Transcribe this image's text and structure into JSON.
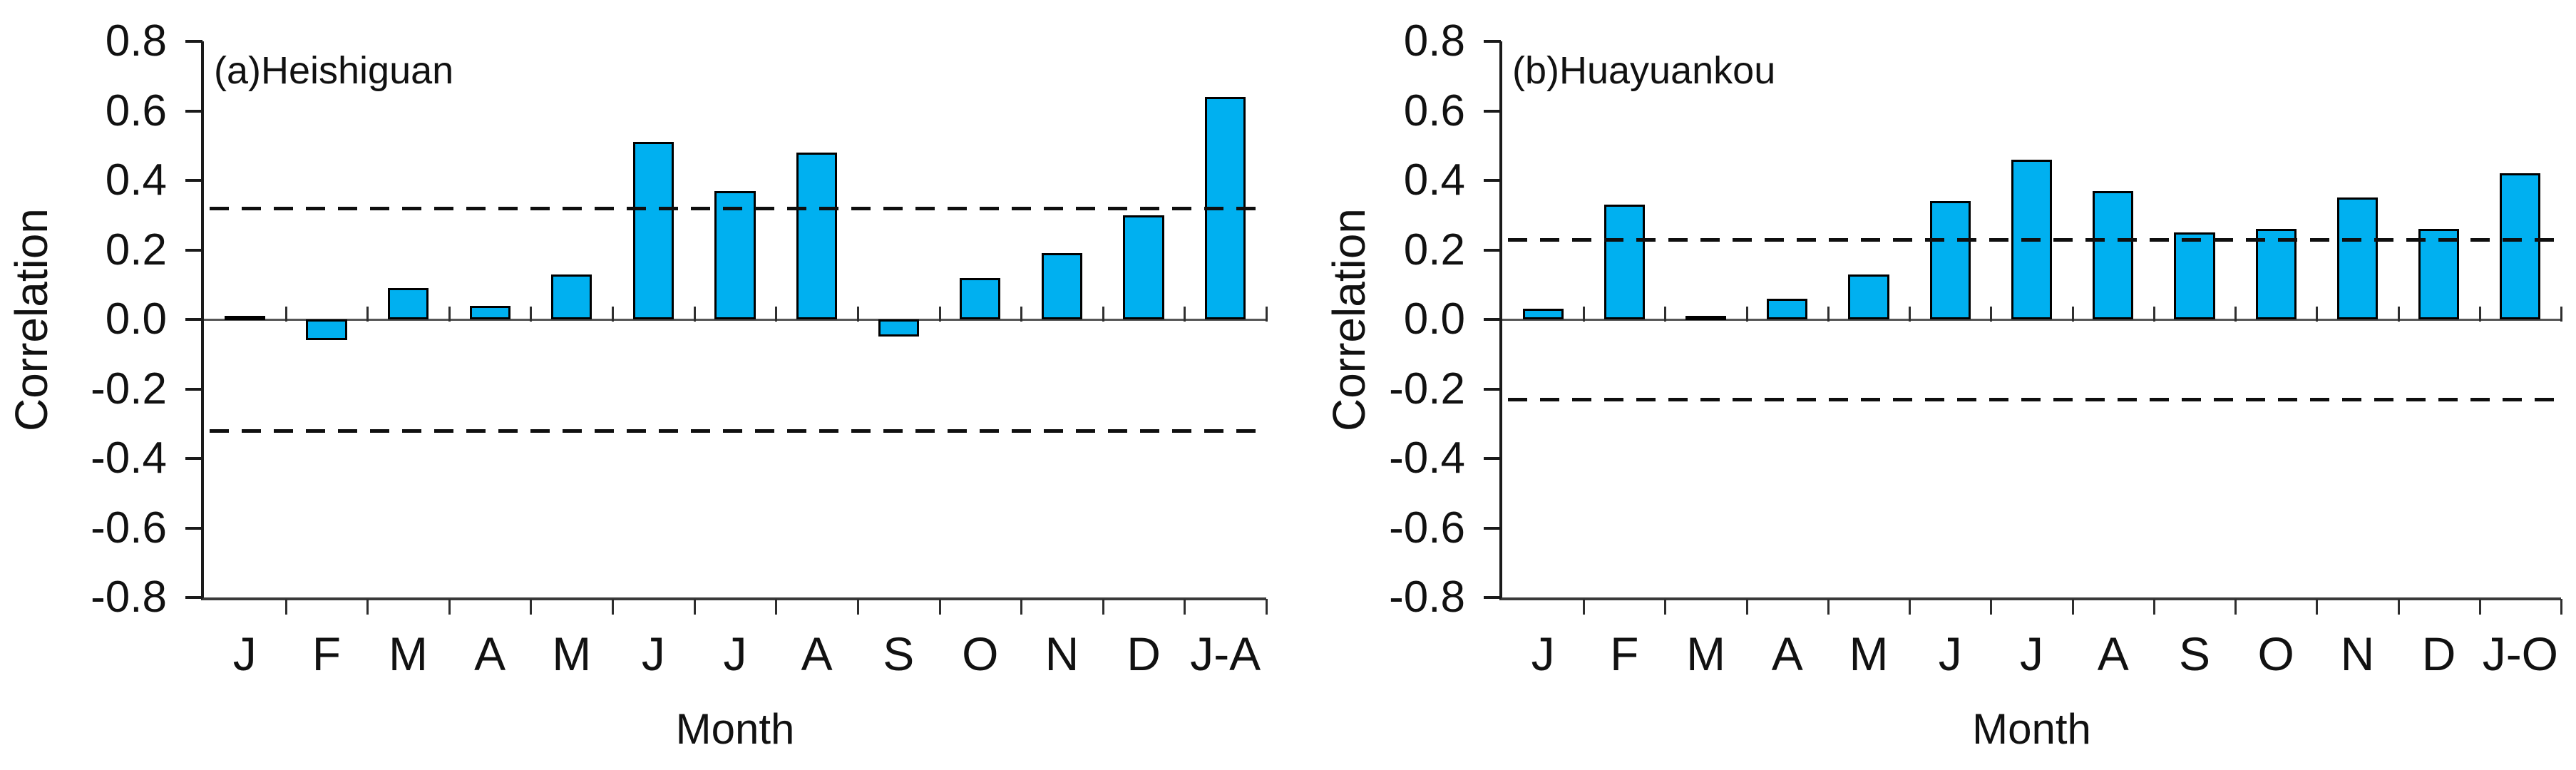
{
  "figure": {
    "background": "#ffffff",
    "bar_color": "#00b0f0",
    "bar_border_color": "#000000",
    "dashed_line_color": "#0f0f0f"
  },
  "chart_data": [
    {
      "type": "bar",
      "panel_label": "(a)Heishiguan",
      "ylabel": "Correlation",
      "xlabel": "Month",
      "ylim": [
        -0.8,
        0.8
      ],
      "ytick_step": 0.2,
      "ytick_labels": [
        "0.8",
        "0.6",
        "0.4",
        "0.2",
        "0.0",
        "-0.2",
        "-0.4",
        "-0.6",
        "-0.8"
      ],
      "categories": [
        "J",
        "F",
        "M",
        "A",
        "M",
        "J",
        "J",
        "A",
        "S",
        "O",
        "N",
        "D",
        "J-A"
      ],
      "values": [
        0.01,
        -0.06,
        0.09,
        0.04,
        0.13,
        0.51,
        0.37,
        0.48,
        -0.05,
        0.12,
        0.19,
        0.3,
        0.64
      ],
      "significance_lines": [
        0.32,
        -0.32
      ],
      "grid": false,
      "legend": null
    },
    {
      "type": "bar",
      "panel_label": "(b)Huayuankou",
      "ylabel": "Correlation",
      "xlabel": "Month",
      "ylim": [
        -0.8,
        0.8
      ],
      "ytick_step": 0.2,
      "ytick_labels": [
        "0.8",
        "0.6",
        "0.4",
        "0.2",
        "0.0",
        "-0.2",
        "-0.4",
        "-0.6",
        "-0.8"
      ],
      "categories": [
        "J",
        "F",
        "M",
        "A",
        "M",
        "J",
        "J",
        "A",
        "S",
        "O",
        "N",
        "D",
        "J-O"
      ],
      "values": [
        0.03,
        0.33,
        0.01,
        0.06,
        0.13,
        0.34,
        0.46,
        0.37,
        0.25,
        0.26,
        0.35,
        0.26,
        0.42
      ],
      "significance_lines": [
        0.23,
        -0.23
      ],
      "grid": false,
      "legend": null
    }
  ]
}
